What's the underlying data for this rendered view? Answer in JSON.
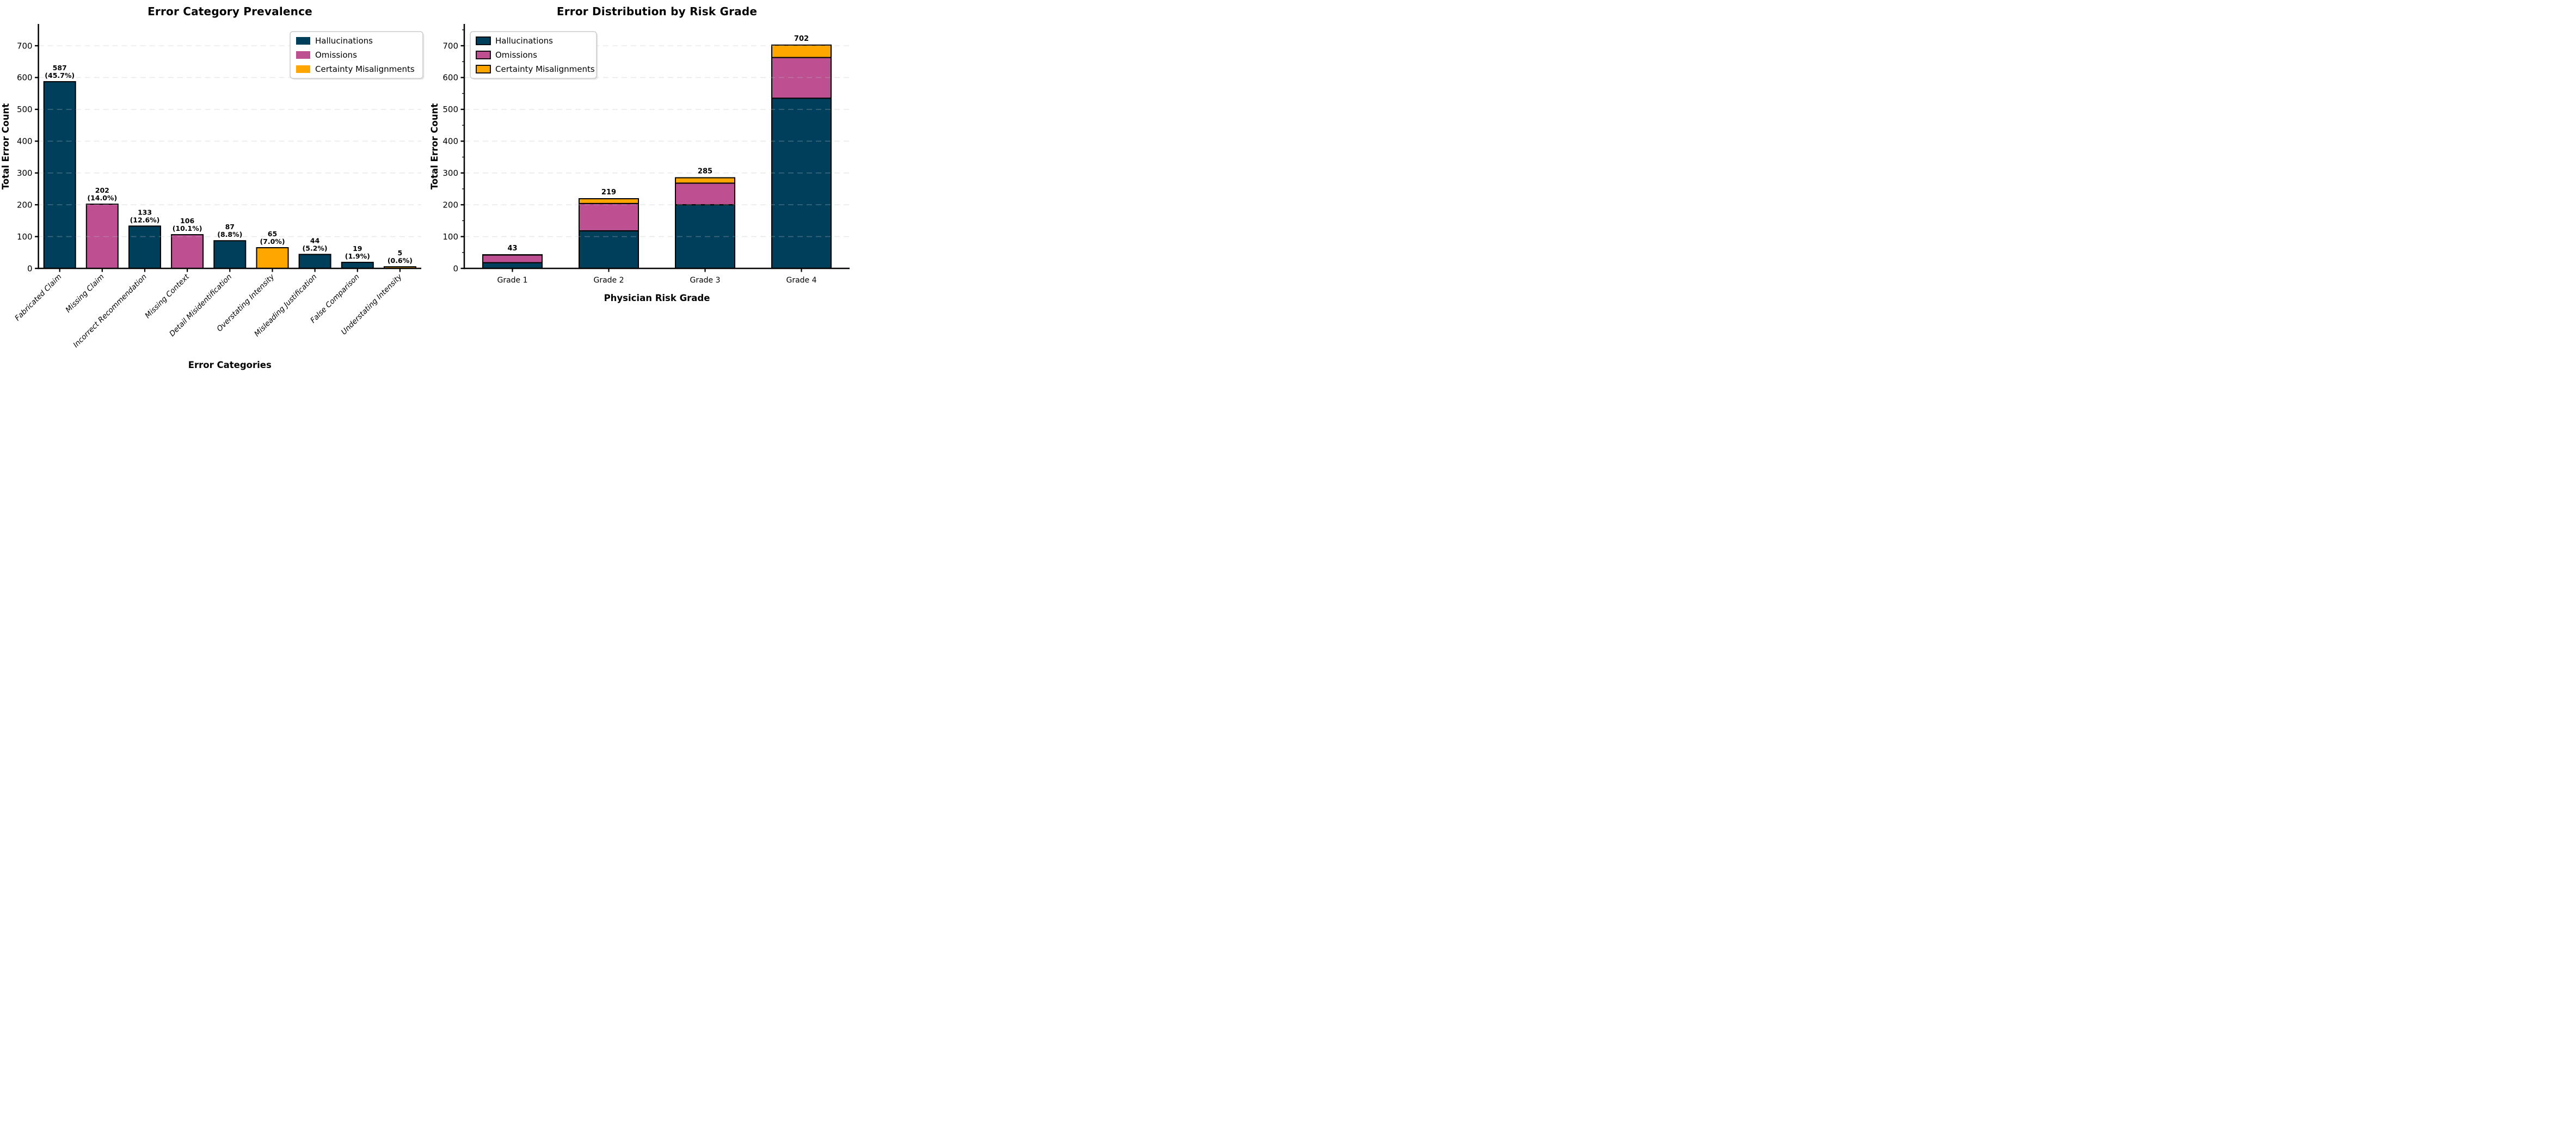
{
  "figure": {
    "background": "#ffffff",
    "left_title": "Error Category Prevalence",
    "right_title": "Error Distribution by Risk Grade"
  },
  "series_colors": {
    "Hallucinations": "#003f5c",
    "Omissions": "#bc5090",
    "Certainty Misalignments": "#ffa600"
  },
  "colors": {
    "bar_edge": "#000000",
    "grid": "#bfbfbf",
    "spine": "#000000",
    "legend_border": "#cccccc",
    "legend_background": "#ffffff",
    "legend_shadow": "#d5d5d5",
    "text": "#000000"
  },
  "chart_data": [
    {
      "type": "bar",
      "title": "Error Category Prevalence",
      "xlabel": "Error Categories",
      "ylabel": "Total Error Count",
      "ylim": [
        0,
        766
      ],
      "yticks": [
        0,
        100,
        200,
        300,
        400,
        500,
        600,
        700
      ],
      "grid": "horizontal-dashed",
      "legend_position": "upper-right",
      "legend_entries": [
        "Hallucinations",
        "Omissions",
        "Certainty Misalignments"
      ],
      "categories": [
        "Fabricated Claim",
        "Missing Claim",
        "Incorrect Recommendation",
        "Missing Context",
        "Detail Misidentification",
        "Overstating Intensity",
        "Misleading Justification",
        "False Comparison",
        "Understating Intensity"
      ],
      "values": [
        587,
        202,
        133,
        106,
        87,
        65,
        44,
        19,
        5
      ],
      "value_labels": [
        "587",
        "202",
        "133",
        "106",
        "87",
        "65",
        "44",
        "19",
        "5"
      ],
      "percent_labels": [
        "(45.7%)",
        "(14.0%)",
        "(12.6%)",
        "(10.1%)",
        "(8.8%)",
        "(7.0%)",
        "(5.2%)",
        "(1.9%)",
        "(0.6%)"
      ],
      "bar_series": [
        "Hallucinations",
        "Omissions",
        "Hallucinations",
        "Omissions",
        "Hallucinations",
        "Certainty Misalignments",
        "Hallucinations",
        "Hallucinations",
        "Certainty Misalignments"
      ]
    },
    {
      "type": "stacked-bar",
      "title": "Error Distribution by Risk Grade",
      "xlabel": "Physician Risk Grade",
      "ylabel": "Total Error Count",
      "ylim": [
        0,
        766
      ],
      "yticks": [
        0,
        100,
        200,
        300,
        400,
        500,
        600,
        700
      ],
      "grid": "horizontal-dashed",
      "legend_position": "upper-left",
      "legend_entries": [
        "Hallucinations",
        "Omissions",
        "Certainty Misalignments"
      ],
      "categories": [
        "Grade 1",
        "Grade 2",
        "Grade 3",
        "Grade 4"
      ],
      "totals": [
        43,
        219,
        285,
        702
      ],
      "total_labels": [
        "43",
        "219",
        "285",
        "702"
      ],
      "series": [
        {
          "name": "Hallucinations",
          "values": [
            18,
            118,
            200,
            535
          ]
        },
        {
          "name": "Omissions",
          "values": [
            24,
            86,
            68,
            128
          ]
        },
        {
          "name": "Certainty Misalignments",
          "values": [
            1,
            15,
            17,
            39
          ]
        }
      ]
    }
  ]
}
